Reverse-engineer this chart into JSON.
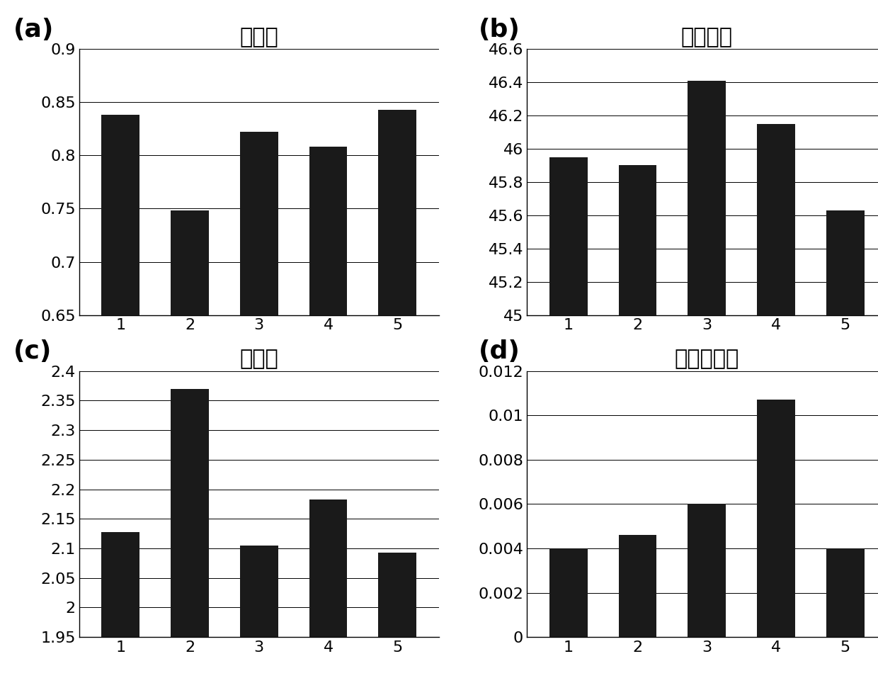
{
  "a_title": "产蛋率",
  "a_values": [
    0.838,
    0.748,
    0.822,
    0.808,
    0.843
  ],
  "a_ylim": [
    0.65,
    0.9
  ],
  "a_yticks": [
    0.65,
    0.7,
    0.75,
    0.8,
    0.85,
    0.9
  ],
  "b_title": "平均蛋重",
  "b_values": [
    45.95,
    45.9,
    46.41,
    46.15,
    45.63
  ],
  "b_ylim": [
    45.0,
    46.6
  ],
  "b_yticks": [
    45.0,
    45.2,
    45.4,
    45.6,
    45.8,
    46.0,
    46.2,
    46.4,
    46.6
  ],
  "c_title": "料蛋比",
  "c_values": [
    2.128,
    2.37,
    2.105,
    2.183,
    2.093
  ],
  "c_ylim": [
    1.95,
    2.4
  ],
  "c_yticks": [
    1.95,
    2.0,
    2.05,
    2.1,
    2.15,
    2.2,
    2.25,
    2.3,
    2.35,
    2.4
  ],
  "d_title": "不合格蛋率",
  "d_values": [
    0.004,
    0.0046,
    0.006,
    0.0107,
    0.004
  ],
  "d_ylim": [
    0,
    0.012
  ],
  "d_yticks": [
    0,
    0.002,
    0.004,
    0.006,
    0.008,
    0.01,
    0.012
  ],
  "categories": [
    "1",
    "2",
    "3",
    "4",
    "5"
  ],
  "bar_color": "#1a1a1a",
  "label_a": "(a)",
  "label_b": "(b)",
  "label_c": "(c)",
  "label_d": "(d)",
  "title_fontsize": 22,
  "panel_label_fontsize": 26,
  "tick_fontsize": 16,
  "background_color": "#ffffff"
}
